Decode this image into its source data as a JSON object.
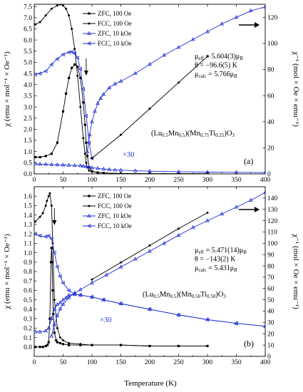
{
  "figure": {
    "xlabel": "Temperature (K)"
  },
  "colors": {
    "black": "#000000",
    "blue": "#1f2fd6"
  },
  "chart_data": [
    {
      "type": "line",
      "panel_label": "(a)",
      "compound": "(Lu₀.₅Mn₀.₅)(Mn₀.₇₅Ti₀.₂₅)O₃",
      "compound_parts": [
        "(Lu",
        "0.5",
        "Mn",
        "0.5",
        ")(Mn",
        "0.75",
        "Ti",
        "0.25",
        ")O",
        "3"
      ],
      "xlabel": "Temperature (K)",
      "ylabel": "χ (emu × mol⁻¹ × Oe⁻¹)",
      "y2label": "χ⁻¹ (mol × Oe × emu⁻¹)",
      "xlim": [
        0,
        400
      ],
      "ylim": [
        0,
        7.6
      ],
      "y2lim": [
        0,
        130
      ],
      "xticks": [
        "0",
        "50",
        "100",
        "150",
        "200",
        "250",
        "300",
        "350",
        "400"
      ],
      "yticks": [
        "0.0",
        "0.5",
        "1.0",
        "1.5",
        "2.0",
        "2.5",
        "3.0",
        "3.5",
        "4.0",
        "4.5",
        "5.0",
        "5.5",
        "6.0",
        "6.5",
        "7.0",
        "7.5"
      ],
      "y2ticks": [
        "0",
        "20",
        "40",
        "60",
        "80",
        "100",
        "120"
      ],
      "legend": [
        "ZFC, 100 Oe",
        "FCC, 100 Oe",
        "ZFC, 10 kOe",
        "FCC, 10 kOe"
      ],
      "annotation": [
        "μeff = 5.604(3)μB",
        "θ = −96.6(5) K",
        "μcalc = 5.766μB"
      ],
      "annotation_parts": [
        [
          "μ",
          "eff",
          " = 5.604(3)μ",
          "B"
        ],
        [
          "θ = −96.6(5) K",
          "",
          "",
          ""
        ],
        [
          "μ",
          "calc",
          " = 5.766μ",
          "B"
        ]
      ],
      "scale_note": "×30",
      "arrow_down_x": 90,
      "series": [
        {
          "name": "ZFC, 100 Oe",
          "axis": "left",
          "x": [
            2,
            10,
            20,
            30,
            40,
            50,
            55,
            60,
            65,
            70,
            75,
            80,
            85,
            88,
            90,
            92,
            95,
            100,
            110,
            120,
            150,
            200,
            250,
            300
          ],
          "y": [
            0.75,
            0.75,
            0.8,
            0.9,
            1.4,
            2.8,
            3.6,
            4.3,
            4.75,
            4.9,
            4.8,
            4.3,
            3.2,
            2.2,
            1.4,
            0.8,
            0.3,
            0.12,
            0.06,
            0.04,
            0.02,
            0.01,
            0.01,
            0.01
          ]
        },
        {
          "name": "FCC, 100 Oe",
          "axis": "left",
          "x": [
            2,
            10,
            20,
            30,
            40,
            45,
            50,
            55,
            60,
            65,
            70,
            75,
            80,
            85,
            88,
            90,
            92,
            95,
            100,
            110,
            120,
            150,
            200,
            250,
            300
          ],
          "y": [
            6.7,
            6.8,
            7.1,
            7.4,
            7.55,
            7.6,
            7.55,
            7.4,
            7.1,
            6.5,
            5.6,
            4.4,
            3.0,
            1.6,
            0.9,
            0.5,
            0.3,
            0.15,
            0.1,
            0.06,
            0.04,
            0.02,
            0.01,
            0.01,
            0.01
          ]
        },
        {
          "name": "ZFC, 10 kOe",
          "axis": "left",
          "x": [
            2,
            10,
            20,
            30,
            40,
            50,
            60,
            70,
            80,
            85,
            90,
            95,
            100,
            110,
            120,
            130,
            140,
            150,
            175,
            200,
            250,
            300,
            350,
            400
          ],
          "y": [
            0.45,
            0.44,
            0.43,
            0.42,
            0.41,
            0.4,
            0.39,
            0.38,
            0.37,
            0.35,
            0.33,
            0.3,
            0.28,
            0.25,
            0.22,
            0.2,
            0.18,
            0.17,
            0.14,
            0.12,
            0.1,
            0.08,
            0.07,
            0.06
          ]
        },
        {
          "name": "FCC, 10 kOe",
          "axis": "left",
          "x": [
            2,
            10,
            20,
            30,
            40,
            50,
            60,
            65,
            70,
            75,
            80,
            85,
            90,
            95,
            100
          ],
          "y": [
            4.45,
            4.5,
            4.6,
            4.9,
            5.15,
            5.35,
            5.45,
            5.47,
            5.4,
            5.2,
            4.7,
            3.8,
            2.6,
            1.4,
            0.7
          ]
        },
        {
          "name": "χ⁻¹ 100 Oe",
          "axis": "right",
          "x": [
            100,
            150,
            200,
            250,
            300
          ],
          "y": [
            12,
            30,
            50,
            70,
            90
          ]
        },
        {
          "name": "χ⁻¹ 10 kOe",
          "axis": "right",
          "x": [
            92,
            96,
            100,
            105,
            110,
            115,
            120,
            130,
            140,
            150,
            175,
            200,
            225,
            250,
            275,
            300,
            325,
            350,
            375,
            400
          ],
          "y": [
            17,
            30,
            40,
            48,
            54,
            58,
            61,
            66,
            69,
            71,
            77,
            84,
            91,
            97,
            103,
            109,
            115,
            120,
            125,
            128
          ]
        }
      ]
    },
    {
      "type": "line",
      "panel_label": "(b)",
      "compound_parts": [
        "(Lu",
        "0.5",
        "Mn",
        "0.5",
        ")(Mn",
        "0.50",
        "Ti",
        "0.50",
        ")O",
        "3"
      ],
      "xlabel": "Temperature (K)",
      "ylabel": "χ (emu × mol⁻¹ × Oe⁻¹)",
      "y2label": "χ⁻¹ (mol × Oe × emu⁻¹)",
      "xlim": [
        0,
        400
      ],
      "ylim": [
        -0.1,
        1.7
      ],
      "y2lim": [
        0,
        150
      ],
      "xticks": [
        "0",
        "50",
        "100",
        "150",
        "200",
        "250",
        "300",
        "350",
        "400"
      ],
      "yticks": [
        "0.0",
        "0.1",
        "0.2",
        "0.3",
        "0.4",
        "0.5",
        "0.6",
        "0.7",
        "0.8",
        "0.9",
        "1.0",
        "1.1",
        "1.2",
        "1.3",
        "1.4",
        "1.5",
        "1.6"
      ],
      "y2ticks": [
        "0",
        "10",
        "20",
        "30",
        "40",
        "50",
        "60",
        "70",
        "80",
        "90",
        "100",
        "110",
        "120",
        "130",
        "140"
      ],
      "legend": [
        "ZFC, 100 Oe",
        "FCC, 100 Oe",
        "ZFC, 10 kOe",
        "FCC, 10 kOe"
      ],
      "annotation_parts": [
        [
          "μ",
          "eff",
          " = 5.471(14)μ",
          "B"
        ],
        [
          "θ = −143(2) K",
          "",
          "",
          ""
        ],
        [
          "μ",
          "calc",
          " = 5.431μ",
          "B"
        ]
      ],
      "scale_note": "×30",
      "arrow_down_x": 35,
      "series": [
        {
          "name": "ZFC, 100 Oe",
          "axis": "left",
          "x": [
            2,
            10,
            15,
            20,
            23,
            25,
            27,
            29,
            30,
            31,
            32,
            33,
            35,
            38,
            40,
            45,
            50,
            60,
            80,
            100,
            150,
            200,
            250,
            300
          ],
          "y": [
            0.0,
            0.0,
            0.0,
            0.01,
            0.02,
            0.05,
            0.3,
            0.9,
            1.05,
            0.9,
            0.6,
            0.35,
            0.15,
            0.07,
            0.05,
            0.04,
            0.03,
            0.02,
            0.02,
            0.02,
            0.02,
            0.01,
            0.01,
            0.01
          ]
        },
        {
          "name": "FCC, 100 Oe",
          "axis": "left",
          "x": [
            2,
            10,
            15,
            20,
            22,
            25,
            27,
            30,
            32,
            35,
            40,
            45,
            50,
            60,
            80,
            100,
            150,
            200,
            250,
            300
          ],
          "y": [
            1.33,
            1.38,
            1.42,
            1.5,
            1.55,
            1.6,
            1.63,
            1.5,
            1.1,
            0.5,
            0.2,
            0.1,
            0.07,
            0.04,
            0.03,
            0.02,
            0.02,
            0.01,
            0.01,
            0.01
          ]
        },
        {
          "name": "ZFC, 10 kOe",
          "axis": "left",
          "x": [
            2,
            10,
            20,
            25,
            30,
            35,
            40,
            45,
            50,
            55,
            60,
            70,
            80,
            100,
            120,
            150,
            200,
            250,
            300,
            350,
            400
          ],
          "y": [
            0.16,
            0.16,
            0.17,
            0.2,
            0.3,
            0.4,
            0.45,
            0.47,
            0.5,
            0.52,
            0.55,
            0.56,
            0.55,
            0.53,
            0.5,
            0.46,
            0.4,
            0.34,
            0.29,
            0.25,
            0.22
          ]
        },
        {
          "name": "FCC, 10 kOe",
          "axis": "left",
          "x": [
            2,
            10,
            20,
            25,
            30,
            35,
            40,
            45,
            50,
            60,
            70,
            80,
            100,
            120,
            150,
            200,
            250,
            300,
            350,
            400
          ],
          "y": [
            1.2,
            1.18,
            1.17,
            1.18,
            1.15,
            1.0,
            0.85,
            0.75,
            0.68,
            0.6,
            0.56,
            0.55,
            0.53,
            0.5,
            0.46,
            0.4,
            0.34,
            0.29,
            0.25,
            0.22
          ]
        },
        {
          "name": "χ⁻¹ 10 kOe",
          "axis": "right",
          "x": [
            30,
            35,
            40,
            45,
            50,
            60,
            70,
            80,
            100,
            125,
            150,
            175,
            200,
            225,
            250,
            275,
            300,
            325,
            350,
            375,
            400
          ],
          "y": [
            18,
            28,
            36,
            42,
            46,
            52,
            56,
            59,
            65,
            72,
            79,
            86,
            93,
            100,
            107,
            114,
            120,
            126,
            132,
            138,
            145
          ]
        },
        {
          "name": "χ⁻¹ 100 Oe",
          "axis": "right",
          "x": [
            100,
            150,
            200,
            250,
            300
          ],
          "y": [
            68,
            83,
            98,
            113,
            127
          ]
        }
      ]
    }
  ]
}
